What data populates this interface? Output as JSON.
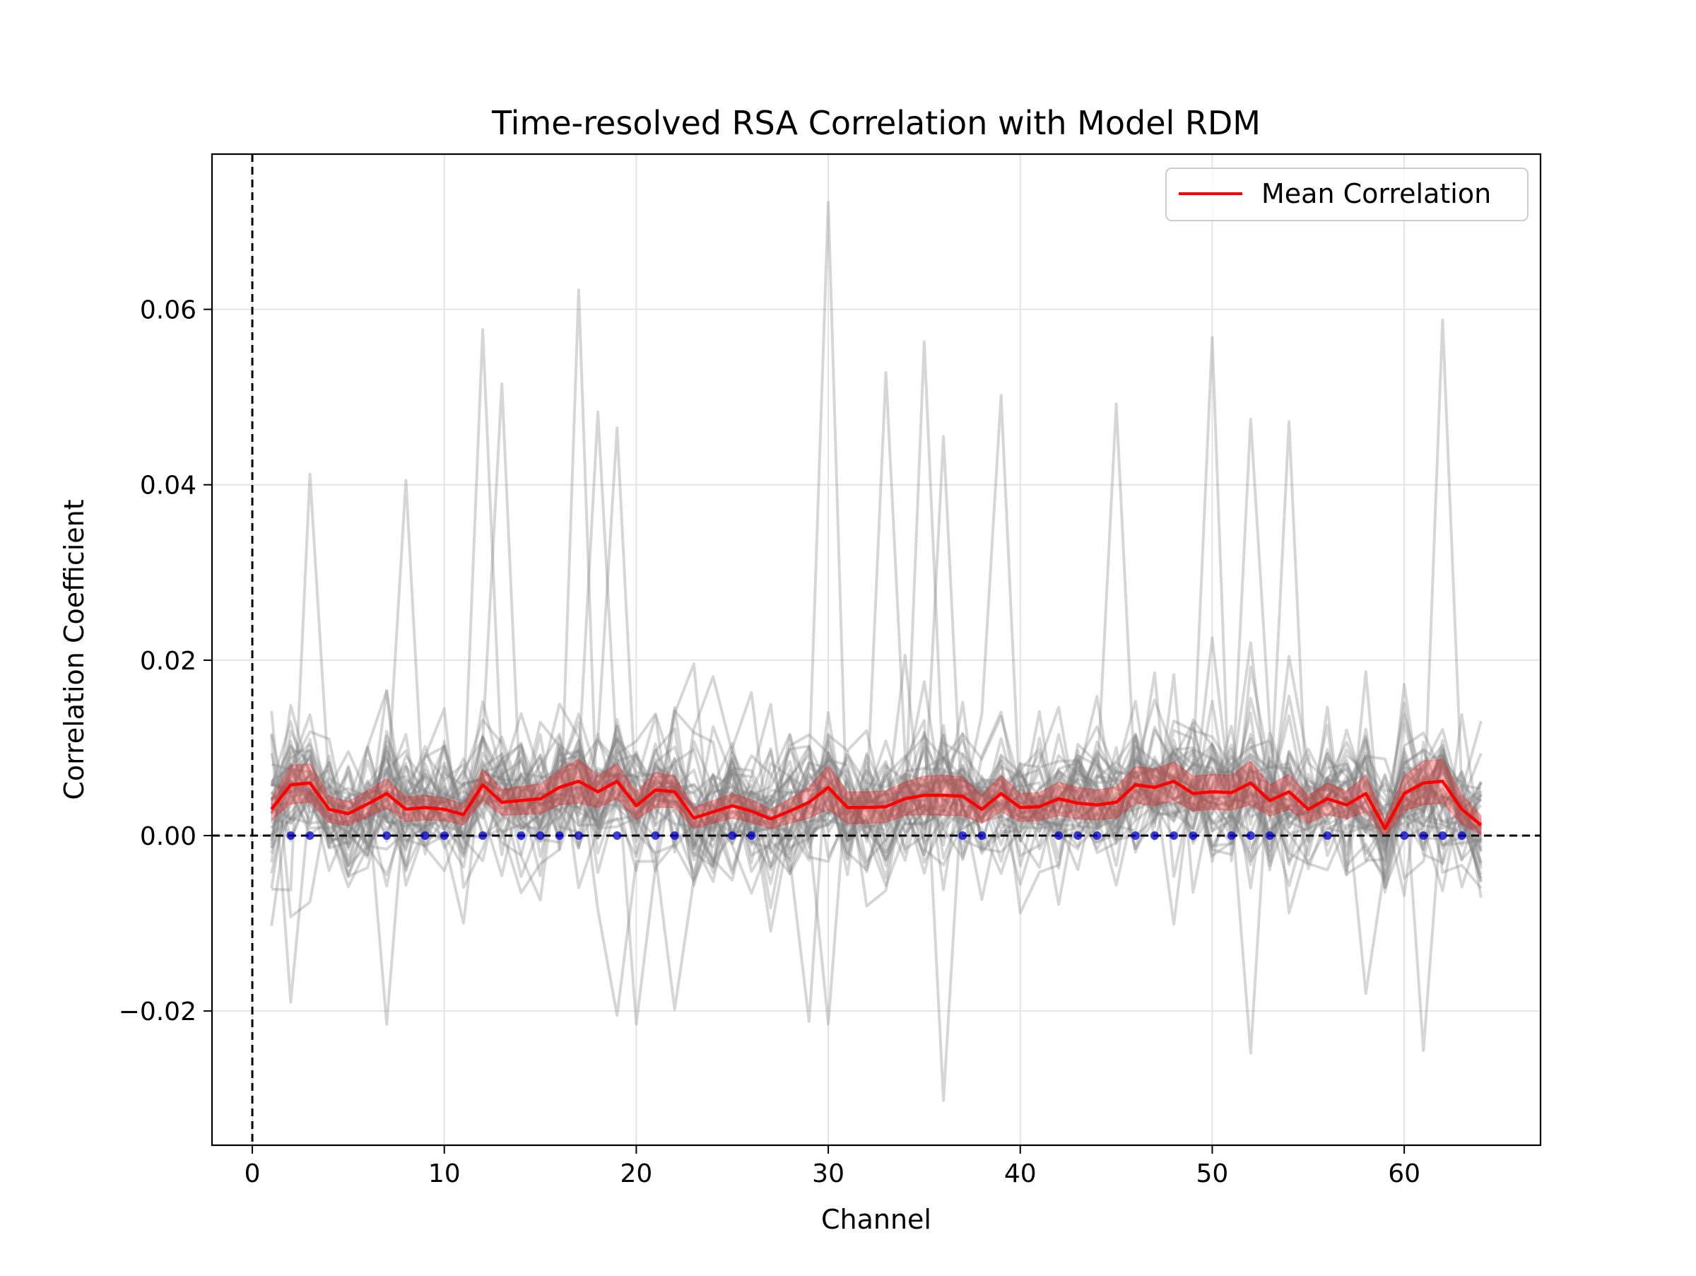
{
  "chart_data": {
    "type": "line",
    "title": "Time-resolved RSA Correlation with Model RDM",
    "xlabel": "Channel",
    "ylabel": "Correlation Coefficient",
    "xlim": [
      -2.1,
      67.1
    ],
    "ylim": [
      -0.0353,
      0.0777
    ],
    "xticks": [
      0,
      10,
      20,
      30,
      40,
      50,
      60
    ],
    "yticks": [
      -0.02,
      0.0,
      0.02,
      0.04,
      0.06
    ],
    "ytick_labels": [
      "−0.02",
      "0.00",
      "0.02",
      "0.04",
      "0.06"
    ],
    "grid": true,
    "legend": {
      "position": "top-right",
      "entries": [
        "Mean Correlation"
      ]
    },
    "reference_lines": {
      "horizontal_y": 0.0,
      "vertical_x": 0
    },
    "colors": {
      "mean": "#ff0000",
      "sem_band": "#ff0000",
      "individual": "#808080",
      "significant": "#0000cc",
      "reference": "#000000"
    },
    "x": [
      1,
      2,
      3,
      4,
      5,
      6,
      7,
      8,
      9,
      10,
      11,
      12,
      13,
      14,
      15,
      16,
      17,
      18,
      19,
      20,
      21,
      22,
      23,
      24,
      25,
      26,
      27,
      28,
      29,
      30,
      31,
      32,
      33,
      34,
      35,
      36,
      37,
      38,
      39,
      40,
      41,
      42,
      43,
      44,
      45,
      46,
      47,
      48,
      49,
      50,
      51,
      52,
      53,
      54,
      55,
      56,
      57,
      58,
      59,
      60,
      61,
      62,
      63,
      64
    ],
    "series": [
      {
        "name": "Mean Correlation",
        "values": [
          0.003,
          0.0058,
          0.006,
          0.003,
          0.0025,
          0.0036,
          0.0048,
          0.003,
          0.0032,
          0.003,
          0.0024,
          0.0058,
          0.0038,
          0.004,
          0.0042,
          0.0055,
          0.0062,
          0.005,
          0.0062,
          0.0034,
          0.0052,
          0.005,
          0.002,
          0.0027,
          0.0034,
          0.0028,
          0.0019,
          0.0028,
          0.0038,
          0.0055,
          0.0032,
          0.0032,
          0.0033,
          0.0042,
          0.0046,
          0.0046,
          0.0045,
          0.003,
          0.0048,
          0.0032,
          0.0033,
          0.0042,
          0.0037,
          0.0035,
          0.0038,
          0.0058,
          0.0055,
          0.0062,
          0.0048,
          0.005,
          0.0049,
          0.006,
          0.004,
          0.005,
          0.003,
          0.0042,
          0.0035,
          0.0048,
          0.0008,
          0.0048,
          0.006,
          0.0062,
          0.003,
          0.0012
        ],
        "sem": [
          0.0012,
          0.0022,
          0.0022,
          0.0015,
          0.0014,
          0.0015,
          0.0017,
          0.0014,
          0.0014,
          0.0013,
          0.0012,
          0.0018,
          0.0015,
          0.0016,
          0.0017,
          0.002,
          0.0025,
          0.0018,
          0.002,
          0.0016,
          0.002,
          0.0018,
          0.0012,
          0.0013,
          0.0014,
          0.0013,
          0.0011,
          0.0014,
          0.0018,
          0.0025,
          0.0018,
          0.0018,
          0.0018,
          0.0019,
          0.0022,
          0.0023,
          0.0022,
          0.0016,
          0.0021,
          0.0016,
          0.0016,
          0.0019,
          0.0018,
          0.0017,
          0.0018,
          0.0021,
          0.0021,
          0.0022,
          0.002,
          0.002,
          0.002,
          0.0025,
          0.0018,
          0.002,
          0.0016,
          0.0018,
          0.0016,
          0.0021,
          0.001,
          0.002,
          0.0025,
          0.0025,
          0.0017,
          0.0011
        ]
      }
    ],
    "significant_channels": [
      2,
      3,
      7,
      9,
      10,
      12,
      14,
      15,
      16,
      17,
      19,
      21,
      22,
      25,
      26,
      37,
      38,
      42,
      43,
      44,
      46,
      47,
      48,
      49,
      51,
      52,
      53,
      56,
      60,
      61,
      62,
      63
    ],
    "individual_subjects": {
      "count": 45,
      "peaks": [
        {
          "x": 2,
          "y": 0.0415
        },
        {
          "x": 3,
          "y": 0.0412
        },
        {
          "x": 8,
          "y": 0.0405
        },
        {
          "x": 12,
          "y": 0.0577
        },
        {
          "x": 13,
          "y": 0.0515
        },
        {
          "x": 17,
          "y": 0.0622
        },
        {
          "x": 18,
          "y": 0.0483
        },
        {
          "x": 19,
          "y": 0.0465
        },
        {
          "x": 30,
          "y": 0.0722
        },
        {
          "x": 33,
          "y": 0.0528
        },
        {
          "x": 35,
          "y": 0.0563
        },
        {
          "x": 36,
          "y": 0.0455
        },
        {
          "x": 39,
          "y": 0.0502
        },
        {
          "x": 45,
          "y": 0.0492
        },
        {
          "x": 50,
          "y": 0.0568
        },
        {
          "x": 52,
          "y": 0.0475
        },
        {
          "x": 54,
          "y": 0.0472
        },
        {
          "x": 62,
          "y": 0.0588
        }
      ],
      "troughs": [
        {
          "x": 2,
          "y": -0.019
        },
        {
          "x": 7,
          "y": -0.0215
        },
        {
          "x": 19,
          "y": -0.0205
        },
        {
          "x": 20,
          "y": -0.0215
        },
        {
          "x": 22,
          "y": -0.0198
        },
        {
          "x": 29,
          "y": -0.0212
        },
        {
          "x": 30,
          "y": -0.0215
        },
        {
          "x": 36,
          "y": -0.0302
        },
        {
          "x": 52,
          "y": -0.0248
        },
        {
          "x": 58,
          "y": -0.018
        },
        {
          "x": 61,
          "y": -0.0245
        }
      ]
    }
  }
}
